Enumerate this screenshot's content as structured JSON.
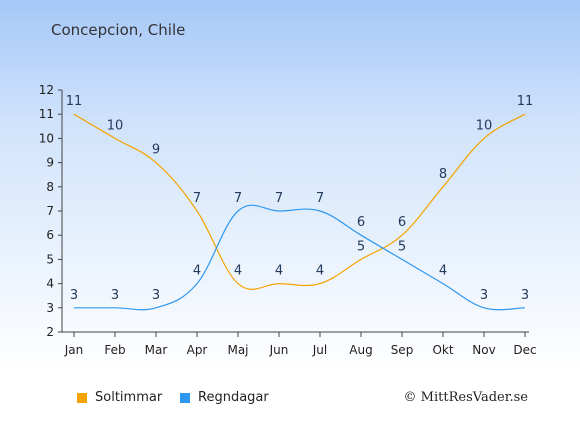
{
  "chart_data": {
    "type": "line",
    "title": "Concepcion, Chile",
    "categories": [
      "Jan",
      "Feb",
      "Mar",
      "Apr",
      "Maj",
      "Jun",
      "Jul",
      "Aug",
      "Sep",
      "Okt",
      "Nov",
      "Dec"
    ],
    "ylim": [
      2,
      12
    ],
    "yticks": [
      2,
      3,
      4,
      5,
      6,
      7,
      8,
      9,
      10,
      11,
      12
    ],
    "series": [
      {
        "name": "Soltimmar",
        "color": "#f5a300",
        "values": [
          11,
          10,
          9,
          7,
          4,
          4,
          4,
          5,
          6,
          8,
          10,
          11
        ]
      },
      {
        "name": "Regndagar",
        "color": "#2e97f0",
        "values": [
          3,
          3,
          3,
          4,
          7,
          7,
          7,
          6,
          5,
          4,
          3,
          3
        ]
      }
    ],
    "grid": false,
    "legend": "bottom-left",
    "label_color": "#243a5c"
  },
  "credit": "© MittResVader.se"
}
